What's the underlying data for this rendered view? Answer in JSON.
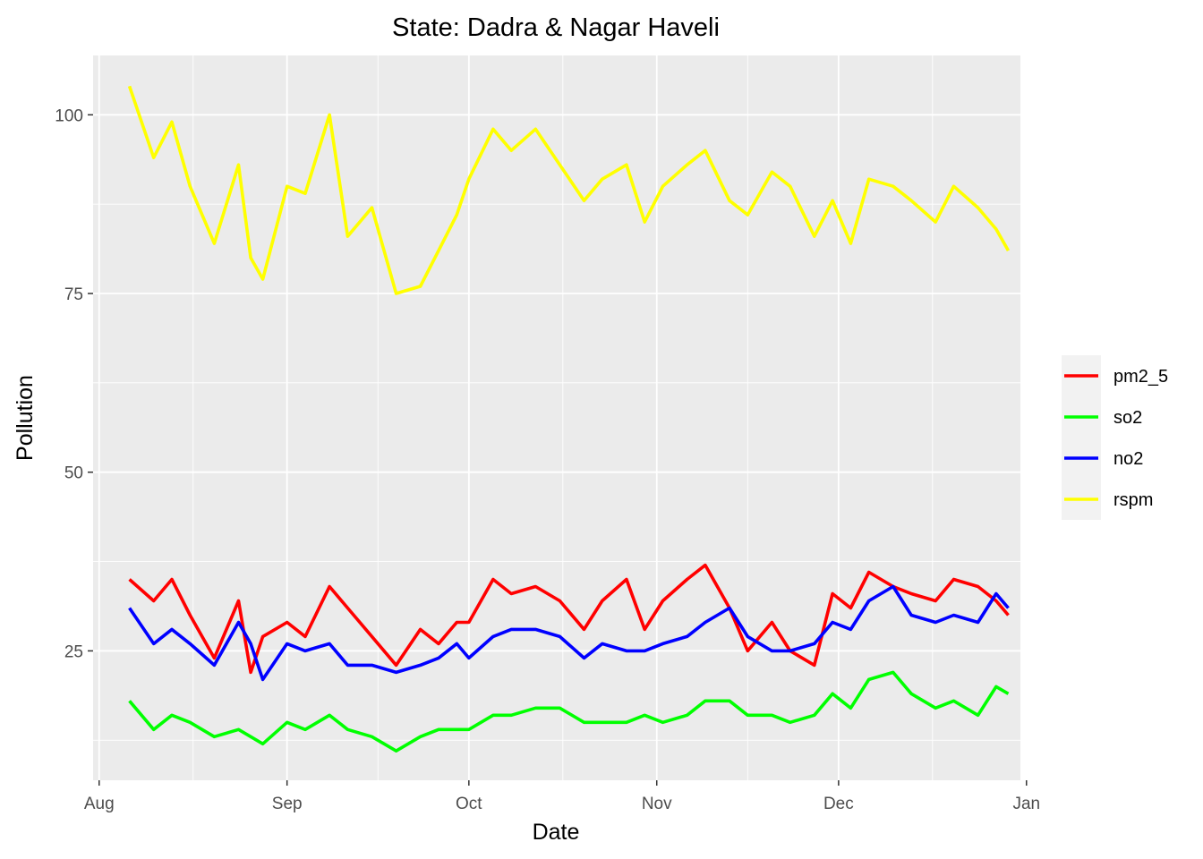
{
  "chart_data": {
    "type": "line",
    "title": "State: Dadra & Nagar Haveli",
    "xlabel": "Date",
    "ylabel": "Pollution",
    "xlim": [
      "2015-07-31",
      "2015-12-31"
    ],
    "ylim": [
      6.9,
      108.3
    ],
    "x_ticks": [
      "2015-08-01",
      "2015-09-01",
      "2015-10-01",
      "2015-11-01",
      "2015-12-01",
      "2016-01-01"
    ],
    "x_tick_labels": [
      "Aug",
      "Sep",
      "Oct",
      "Nov",
      "Dec",
      "Jan"
    ],
    "y_ticks": [
      25,
      50,
      75,
      100
    ],
    "y_tick_labels": [
      "25",
      "50",
      "75",
      "100"
    ],
    "grid": true,
    "legend_position": "right",
    "x": [
      "2015-08-06",
      "2015-08-10",
      "2015-08-13",
      "2015-08-16",
      "2015-08-20",
      "2015-08-24",
      "2015-08-26",
      "2015-08-28",
      "2015-09-01",
      "2015-09-04",
      "2015-09-08",
      "2015-09-11",
      "2015-09-15",
      "2015-09-19",
      "2015-09-23",
      "2015-09-26",
      "2015-09-29",
      "2015-10-01",
      "2015-10-05",
      "2015-10-08",
      "2015-10-12",
      "2015-10-16",
      "2015-10-20",
      "2015-10-23",
      "2015-10-27",
      "2015-10-30",
      "2015-11-02",
      "2015-11-06",
      "2015-11-09",
      "2015-11-13",
      "2015-11-16",
      "2015-11-20",
      "2015-11-23",
      "2015-11-27",
      "2015-11-30",
      "2015-12-03",
      "2015-12-06",
      "2015-12-10",
      "2015-12-13",
      "2015-12-17",
      "2015-12-20",
      "2015-12-24",
      "2015-12-27",
      "2015-12-29"
    ],
    "series": [
      {
        "name": "pm2_5",
        "color": "#ff0000",
        "values": [
          35,
          32,
          35,
          30,
          24,
          32,
          22,
          27,
          29,
          27,
          34,
          31,
          27,
          23,
          28,
          26,
          29,
          29,
          35,
          33,
          34,
          32,
          28,
          32,
          35,
          28,
          32,
          35,
          37,
          31,
          25,
          29,
          25,
          23,
          33,
          31,
          36,
          34,
          33,
          32,
          35,
          34,
          32,
          30
        ]
      },
      {
        "name": "so2",
        "color": "#00ff00",
        "values": [
          18,
          14,
          16,
          15,
          13,
          14,
          13,
          12,
          15,
          14,
          16,
          14,
          13,
          11,
          13,
          14,
          14,
          14,
          16,
          16,
          17,
          17,
          15,
          15,
          15,
          16,
          15,
          16,
          18,
          18,
          16,
          16,
          15,
          16,
          19,
          17,
          21,
          22,
          19,
          17,
          18,
          16,
          20,
          19
        ]
      },
      {
        "name": "no2",
        "color": "#0000ff",
        "values": [
          31,
          26,
          28,
          26,
          23,
          29,
          26,
          21,
          26,
          25,
          26,
          23,
          23,
          22,
          23,
          24,
          26,
          24,
          27,
          28,
          28,
          27,
          24,
          26,
          25,
          25,
          26,
          27,
          29,
          31,
          27,
          25,
          25,
          26,
          29,
          28,
          32,
          34,
          30,
          29,
          30,
          29,
          33,
          31
        ]
      },
      {
        "name": "rspm",
        "color": "#ffff00",
        "values": [
          104,
          94,
          99,
          90,
          82,
          93,
          80,
          77,
          90,
          89,
          100,
          83,
          87,
          75,
          76,
          81,
          86,
          91,
          98,
          95,
          98,
          93,
          88,
          91,
          93,
          85,
          90,
          93,
          95,
          88,
          86,
          92,
          90,
          83,
          88,
          82,
          91,
          90,
          88,
          85,
          90,
          87,
          84,
          81
        ]
      }
    ]
  }
}
